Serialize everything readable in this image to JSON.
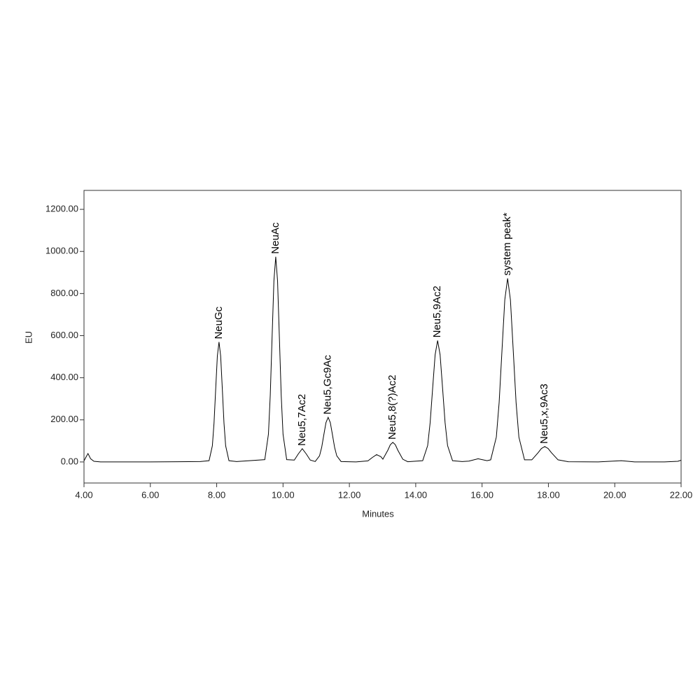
{
  "chart_data": {
    "type": "line",
    "xlabel": "Minutes",
    "ylabel": "EU",
    "color": "#000000",
    "xlim": [
      4,
      22
    ],
    "ylim": [
      -100,
      1290
    ],
    "xticks": [
      {
        "value": 4,
        "label": "4.00"
      },
      {
        "value": 6,
        "label": "6.00"
      },
      {
        "value": 8,
        "label": "8.00"
      },
      {
        "value": 10,
        "label": "10.00"
      },
      {
        "value": 12,
        "label": "12.00"
      },
      {
        "value": 14,
        "label": "14.00"
      },
      {
        "value": 16,
        "label": "16.00"
      },
      {
        "value": 18,
        "label": "18.00"
      },
      {
        "value": 20,
        "label": "20.00"
      },
      {
        "value": 22,
        "label": "22.00"
      }
    ],
    "yticks": [
      {
        "value": 0,
        "label": "0.00"
      },
      {
        "value": 200,
        "label": "200.00"
      },
      {
        "value": 400,
        "label": "400.00"
      },
      {
        "value": 600,
        "label": "600.00"
      },
      {
        "value": 800,
        "label": "800.00"
      },
      {
        "value": 1000,
        "label": "1000.00"
      },
      {
        "value": 1200,
        "label": "1200.00"
      }
    ],
    "x": [
      4.0,
      4.05,
      4.12,
      4.2,
      4.3,
      4.5,
      6.0,
      7.5,
      7.77,
      7.87,
      7.92,
      7.97,
      8.02,
      8.07,
      8.12,
      8.17,
      8.22,
      8.27,
      8.37,
      8.6,
      9.45,
      9.56,
      9.615,
      9.67,
      9.725,
      9.78,
      9.835,
      9.89,
      9.945,
      10.0,
      10.11,
      10.34,
      10.46,
      10.58,
      10.7,
      10.82,
      10.97,
      11.1,
      11.165,
      11.23,
      11.295,
      11.36,
      11.425,
      11.49,
      11.555,
      11.62,
      11.75,
      12.2,
      12.56,
      12.69,
      12.82,
      12.95,
      13.01,
      13.16,
      13.235,
      13.31,
      13.385,
      13.46,
      13.61,
      13.76,
      14.21,
      14.36,
      14.435,
      14.51,
      14.585,
      14.66,
      14.735,
      14.81,
      14.885,
      14.96,
      15.11,
      15.4,
      15.6,
      15.88,
      16.15,
      16.26,
      16.43,
      16.515,
      16.6,
      16.685,
      16.77,
      16.855,
      16.94,
      17.025,
      17.11,
      17.28,
      17.5,
      17.69,
      17.79,
      17.89,
      17.99,
      18.09,
      18.29,
      18.6,
      19.5,
      20.2,
      20.6,
      21.5,
      21.9,
      22.0
    ],
    "values": [
      5,
      20,
      40,
      15,
      3,
      0,
      0,
      2,
      6,
      77,
      185,
      346,
      503,
      570,
      503,
      346,
      185,
      77,
      6,
      2,
      11,
      132,
      317,
      591,
      860,
      975,
      860,
      591,
      317,
      132,
      11,
      9,
      38,
      63,
      38,
      9,
      2,
      29,
      69,
      129,
      187,
      212,
      187,
      129,
      69,
      29,
      2,
      0,
      5,
      21,
      35,
      25,
      13,
      56,
      82,
      93,
      82,
      56,
      13,
      1,
      6,
      78,
      187,
      350,
      509,
      577,
      509,
      350,
      187,
      78,
      6,
      2,
      4,
      15,
      6,
      10,
      118,
      283,
      529,
      770,
      872,
      770,
      529,
      283,
      118,
      10,
      10,
      44,
      64,
      73,
      64,
      44,
      10,
      1,
      0,
      6,
      0,
      0,
      3,
      8
    ],
    "peaks": [
      {
        "label": "NeuGc",
        "x": 8.07,
        "y": 570
      },
      {
        "label": "NeuAc",
        "x": 9.78,
        "y": 975
      },
      {
        "label": "Neu5,7Ac2",
        "x": 10.58,
        "y": 63
      },
      {
        "label": "Neu5,Gc9Ac",
        "x": 11.36,
        "y": 212
      },
      {
        "label": "Neu5,8(?)Ac2",
        "x": 13.31,
        "y": 93
      },
      {
        "label": "Neu5,9Ac2",
        "x": 14.66,
        "y": 577
      },
      {
        "label": "system peak*",
        "x": 16.77,
        "y": 872
      },
      {
        "label": "Neu5,x,9Ac3",
        "x": 17.89,
        "y": 73
      }
    ]
  }
}
